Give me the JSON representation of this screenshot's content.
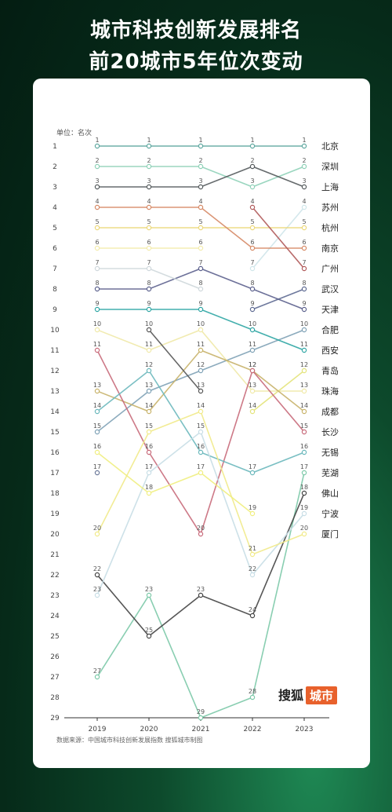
{
  "header": {
    "title_line1": "城市科技创新发展排名",
    "title_line2": "前20城市5年位次变动"
  },
  "source_note": "数据来源：中国城市科技创新发展指数 搜狐城市制图",
  "logo": {
    "brand": "搜狐",
    "tag": "城市"
  },
  "chart_data": {
    "type": "line",
    "title": "",
    "unit_label": "单位：名次",
    "xlabel": "",
    "ylabel": "",
    "x": [
      "2019",
      "2020",
      "2021",
      "2022",
      "2023"
    ],
    "ylim": [
      1,
      29
    ],
    "y_reversed": true,
    "y_ticks": [
      1,
      2,
      3,
      4,
      5,
      6,
      7,
      8,
      9,
      10,
      11,
      12,
      13,
      14,
      15,
      16,
      17,
      18,
      19,
      20,
      21,
      22,
      23,
      24,
      25,
      26,
      27,
      28,
      29
    ],
    "grid": false,
    "series": [
      {
        "name": "北京",
        "color": "#5fa8a0",
        "values": [
          1,
          1,
          1,
          1,
          1
        ]
      },
      {
        "name": "深圳",
        "color": "#8fd1b8",
        "values": [
          2,
          2,
          2,
          3,
          2
        ]
      },
      {
        "name": "上海",
        "color": "#555b5d",
        "values": [
          3,
          3,
          3,
          2,
          3
        ]
      },
      {
        "name": "苏州",
        "color": "#cfe6ea",
        "values": [
          null,
          null,
          null,
          7,
          4
        ]
      },
      {
        "name": "杭州",
        "color": "#ecd87a",
        "values": [
          5,
          5,
          5,
          5,
          5
        ]
      },
      {
        "name": "南京",
        "color": "#d68a66",
        "values": [
          4,
          4,
          4,
          6,
          6
        ]
      },
      {
        "name": "广州",
        "color": "#b05a5a",
        "values": [
          null,
          null,
          null,
          4,
          7
        ]
      },
      {
        "name": "天津",
        "color": "#5d628e",
        "values": [
          8,
          8,
          7,
          8,
          9
        ]
      },
      {
        "name": "武汉",
        "color": "#5e6a92",
        "values": [
          null,
          null,
          null,
          9,
          8
        ]
      },
      {
        "name": "合肥",
        "color": "#7fa2b6",
        "values": [
          15,
          13,
          12,
          11,
          10
        ]
      },
      {
        "name": "西安",
        "color": "#2fa6a4",
        "values": [
          9,
          9,
          9,
          10,
          11
        ]
      },
      {
        "name": "青岛",
        "color": "#e3e37a",
        "values": [
          null,
          null,
          null,
          14,
          12
        ]
      },
      {
        "name": "珠海",
        "color": "#f0e9a8",
        "values": [
          10,
          11,
          10,
          13,
          13
        ]
      },
      {
        "name": "成都",
        "color": "#c8b36a",
        "values": [
          13,
          14,
          11,
          12,
          14
        ]
      },
      {
        "name": "长沙",
        "color": "#c86a7a",
        "values": [
          11,
          16,
          20,
          12,
          15
        ]
      },
      {
        "name": "无锡",
        "color": "#6bb8bc",
        "values": [
          14,
          12,
          16,
          17,
          16
        ]
      },
      {
        "name": "芜湖",
        "color": "#7cc9a8",
        "values": [
          27,
          23,
          29,
          28,
          17
        ]
      },
      {
        "name": "佛山",
        "color": "#444444",
        "values": [
          22,
          25,
          23,
          24,
          18
        ]
      },
      {
        "name": "宁波",
        "color": "#c8dee6",
        "values": [
          23,
          17,
          15,
          22,
          19
        ]
      },
      {
        "name": "厦门",
        "color": "#f1ea8a",
        "values": [
          20,
          15,
          14,
          21,
          20
        ]
      },
      {
        "name": "",
        "color": "#f0ee80",
        "values": [
          16,
          18,
          17,
          19,
          null
        ]
      },
      {
        "name": "",
        "color": "#cfd8dc",
        "values": [
          7,
          7,
          8,
          null,
          null
        ]
      },
      {
        "name": "",
        "color": "#f3ebac",
        "values": [
          6,
          6,
          6,
          null,
          null
        ]
      },
      {
        "name": "",
        "color": "#6c7a9a",
        "values": [
          17,
          null,
          null,
          null,
          null
        ]
      },
      {
        "name": "",
        "color": "#555555",
        "values": [
          null,
          10,
          13,
          null,
          null
        ]
      },
      {
        "name": "",
        "color": "#c7703f",
        "values": [
          null,
          null,
          null,
          null,
          null
        ]
      }
    ]
  }
}
